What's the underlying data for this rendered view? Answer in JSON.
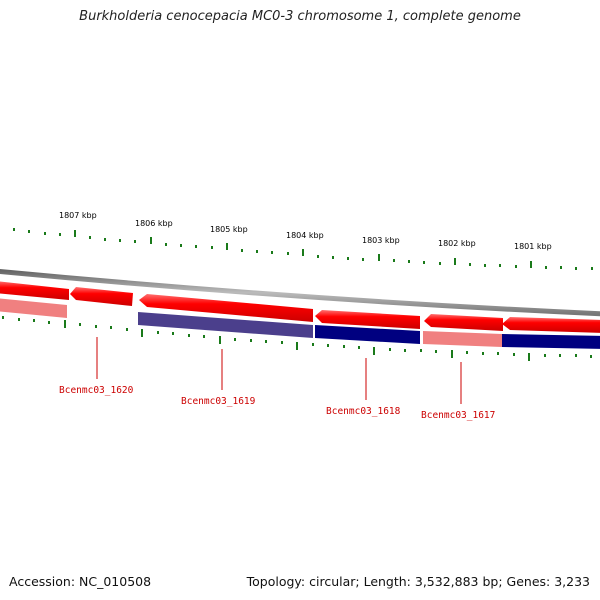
{
  "title": "Burkholderia cenocepacia MC0-3 chromosome 1, complete genome",
  "footer": {
    "accession": "Accession: NC_010508",
    "stats": "Topology: circular; Length: 3,532,883 bp; Genes: 3,233"
  },
  "colors": {
    "forward_gene": "#ff0000",
    "forward_gene_light": "#f08080",
    "reverse_gene": "#000080",
    "reverse_gene_light": "#4b3f8c",
    "backbone": "#888888",
    "ticks": "#1a7a1a",
    "labels": "#cc0000"
  },
  "scale": {
    "unit": "kbp",
    "major_ticks": [
      {
        "position_kbp": 1807,
        "label": "1807 kbp"
      },
      {
        "position_kbp": 1806,
        "label": "1806 kbp"
      },
      {
        "position_kbp": 1805,
        "label": "1805 kbp"
      },
      {
        "position_kbp": 1804,
        "label": "1804 kbp"
      },
      {
        "position_kbp": 1803,
        "label": "1803 kbp"
      },
      {
        "position_kbp": 1802,
        "label": "1802 kbp"
      },
      {
        "position_kbp": 1801,
        "label": "1801 kbp"
      }
    ]
  },
  "gene_labels": [
    {
      "name": "Bcenmc03_1620"
    },
    {
      "name": "Bcenmc03_1619"
    },
    {
      "name": "Bcenmc03_1618"
    },
    {
      "name": "Bcenmc03_1617"
    }
  ]
}
